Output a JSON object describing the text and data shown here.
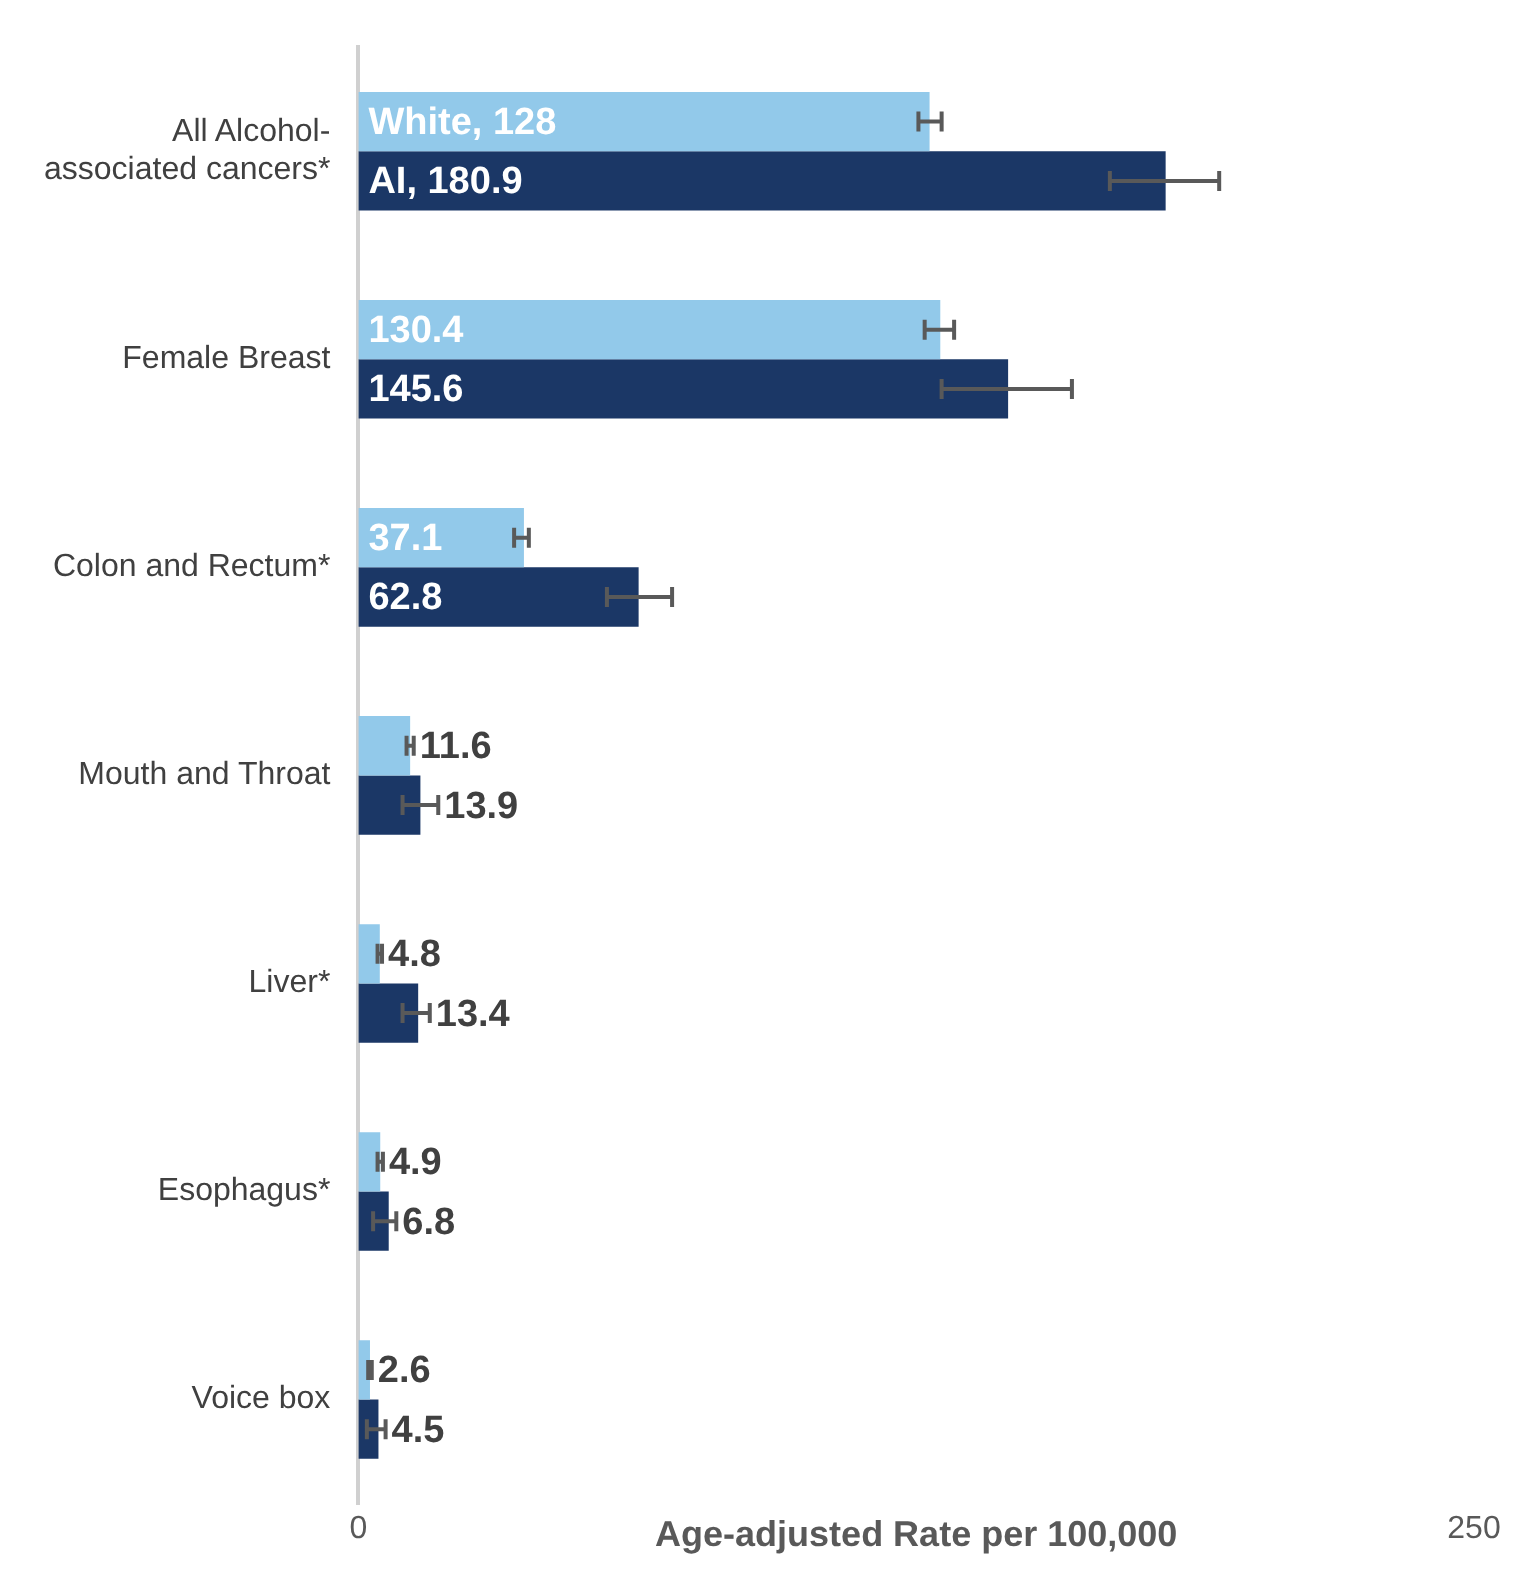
{
  "chart_data": {
    "type": "bar",
    "orientation": "horizontal",
    "xlabel": "Age-adjusted Rate per 100,000",
    "categories": [
      "All Alcohol-associated cancers*",
      "Female Breast",
      "Colon and Rectum*",
      "Mouth and Throat",
      "Liver*",
      "Esophagus*",
      "Voice box"
    ],
    "series": [
      {
        "color": "#92c9ea",
        "values": [
          128,
          130.4,
          37.1,
          11.6,
          4.8,
          4.9,
          2.6
        ],
        "value_labels": [
          "White, 128",
          "130.4",
          "37.1",
          "11.6",
          "4.8",
          "4.9",
          "2.6"
        ],
        "errors": [
          [
            125.5,
            130.7
          ],
          [
            126.9,
            133.5
          ],
          [
            34.9,
            38.2
          ],
          [
            10.8,
            12.4
          ],
          [
            4.3,
            5.3
          ],
          [
            4.3,
            5.5
          ],
          [
            2.2,
            3.0
          ]
        ]
      },
      {
        "color": "#1b3766",
        "values": [
          180.9,
          145.6,
          62.8,
          13.9,
          13.4,
          6.8,
          4.5
        ],
        "value_labels": [
          "AI, 180.9",
          "145.6",
          "62.8",
          "13.9",
          "13.4",
          "6.8",
          "4.5"
        ],
        "errors": [
          [
            168.4,
            192.9
          ],
          [
            130.7,
            159.9
          ],
          [
            55.7,
            70.3
          ],
          [
            9.9,
            17.9
          ],
          [
            9.9,
            16
          ],
          [
            3.3,
            8.5
          ],
          [
            1.9,
            6.1
          ]
        ]
      }
    ],
    "xlim": [
      0,
      250
    ],
    "xticks": [
      0,
      250
    ],
    "grid": false,
    "legend": false
  }
}
